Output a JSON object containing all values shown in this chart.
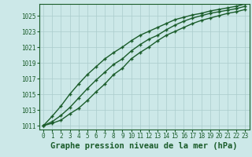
{
  "title": "Graphe pression niveau de la mer (hPa)",
  "bg_color": "#cce8e8",
  "plot_bg_color": "#cce8e8",
  "grid_color": "#aacccc",
  "line_color": "#1a5c2a",
  "marker_color": "#1a5c2a",
  "xlim": [
    -0.5,
    23.5
  ],
  "ylim": [
    1010.5,
    1026.5
  ],
  "xtick_labels": [
    "0",
    "1",
    "2",
    "3",
    "4",
    "5",
    "6",
    "7",
    "8",
    "9",
    "10",
    "11",
    "12",
    "13",
    "14",
    "15",
    "16",
    "17",
    "18",
    "19",
    "20",
    "21",
    "22",
    "23"
  ],
  "yticks": [
    1011,
    1013,
    1015,
    1017,
    1019,
    1021,
    1023,
    1025
  ],
  "series": [
    [
      1011.0,
      1011.3,
      1011.7,
      1012.5,
      1013.2,
      1014.2,
      1015.3,
      1016.3,
      1017.5,
      1018.3,
      1019.5,
      1020.3,
      1021.0,
      1021.8,
      1022.5,
      1023.0,
      1023.5,
      1024.0,
      1024.4,
      1024.7,
      1025.0,
      1025.3,
      1025.5,
      1025.8
    ],
    [
      1011.0,
      1011.5,
      1012.3,
      1013.3,
      1014.5,
      1015.7,
      1016.8,
      1017.8,
      1018.8,
      1019.5,
      1020.5,
      1021.3,
      1022.0,
      1022.5,
      1023.2,
      1023.8,
      1024.3,
      1024.7,
      1025.0,
      1025.3,
      1025.5,
      1025.7,
      1025.9,
      1026.2
    ],
    [
      1011.0,
      1012.2,
      1013.5,
      1015.0,
      1016.3,
      1017.5,
      1018.5,
      1019.5,
      1020.3,
      1021.0,
      1021.8,
      1022.5,
      1023.0,
      1023.5,
      1024.0,
      1024.5,
      1024.8,
      1025.1,
      1025.3,
      1025.6,
      1025.8,
      1026.0,
      1026.2,
      1026.5
    ]
  ],
  "marker_size": 3.5,
  "line_width": 1.0,
  "title_fontsize": 7.5,
  "tick_fontsize": 5.5
}
